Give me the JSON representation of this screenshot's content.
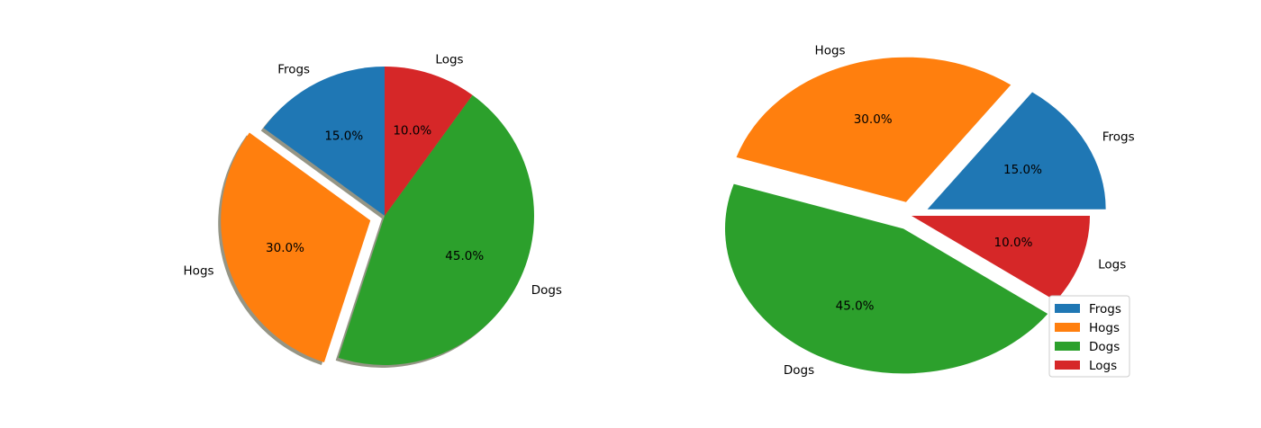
{
  "chart_data": [
    {
      "type": "pie",
      "categories": [
        "Frogs",
        "Hogs",
        "Dogs",
        "Logs"
      ],
      "values": [
        15,
        30,
        45,
        10
      ],
      "percent_labels": [
        "15.0%",
        "30.0%",
        "45.0%",
        "10.0%"
      ],
      "colors": [
        "#1f77b4",
        "#ff7f0e",
        "#2ca02c",
        "#d62728"
      ],
      "explode": [
        0,
        0.1,
        0,
        0
      ],
      "start_angle_deg": 90,
      "direction": "counterclockwise",
      "shadow": true,
      "aspect": "equal",
      "legend": null
    },
    {
      "type": "pie",
      "categories": [
        "Frogs",
        "Hogs",
        "Dogs",
        "Logs"
      ],
      "values": [
        15,
        30,
        45,
        10
      ],
      "percent_labels": [
        "15.0%",
        "30.0%",
        "45.0%",
        "10.0%"
      ],
      "colors": [
        "#1f77b4",
        "#ff7f0e",
        "#2ca02c",
        "#d62728"
      ],
      "explode": [
        0.1,
        0.1,
        0.1,
        0
      ],
      "start_angle_deg": 0,
      "direction": "counterclockwise",
      "shadow": false,
      "aspect": "stretched",
      "legend": {
        "placement": "lower-right",
        "entries": [
          "Frogs",
          "Hogs",
          "Dogs",
          "Logs"
        ]
      }
    }
  ]
}
